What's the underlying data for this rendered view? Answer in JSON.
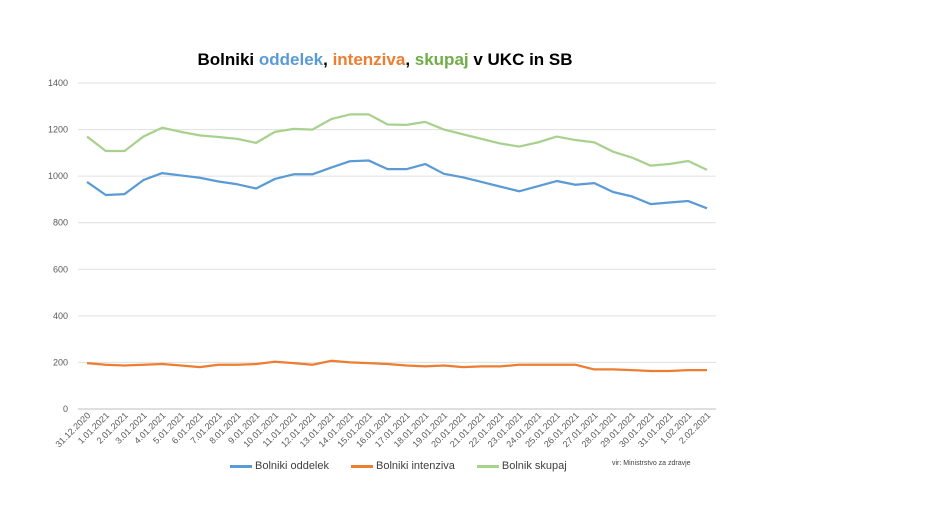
{
  "chart_data": {
    "type": "line",
    "title_parts": [
      {
        "text": "Bolniki ",
        "color": "#000000"
      },
      {
        "text": "oddelek",
        "color": "#5B9BD5"
      },
      {
        "text": ", ",
        "color": "#000000"
      },
      {
        "text": "intenziva",
        "color": "#ED7D31"
      },
      {
        "text": ", ",
        "color": "#000000"
      },
      {
        "text": "skupaj",
        "color": "#70AD47"
      },
      {
        "text": " v UKC in SB",
        "color": "#000000"
      }
    ],
    "categories": [
      "31.12.2020",
      "1.01.2021",
      "2.01.2021",
      "3.01.2021",
      "4.01.2021",
      "5.01.2021",
      "6.01.2021",
      "7.01.2021",
      "8.01.2021",
      "9.01.2021",
      "10.01.2021",
      "11.01.2021",
      "12.01.2021",
      "13.01.2021",
      "14.01.2021",
      "15.01.2021",
      "16.01.2021",
      "17.01.2021",
      "18.01.2021",
      "19.01.2021",
      "20.01.2021",
      "21.01.2021",
      "22.01.2021",
      "23.01.2021",
      "24.01.2021",
      "25.01.2021",
      "26.01.2021",
      "27.01.2021",
      "28.01.2021",
      "29.01.2021",
      "30.01.2021",
      "31.01.2021",
      "1.02.2021",
      "2.02.2021"
    ],
    "series": [
      {
        "name": "Bolniki oddelek",
        "color": "#5B9BD5",
        "values": [
          975,
          919,
          923,
          983,
          1013,
          1003,
          993,
          977,
          965,
          947,
          988,
          1008,
          1008,
          1037,
          1064,
          1067,
          1030,
          1030,
          1052,
          1010,
          995,
          975,
          955,
          935,
          957,
          979,
          963,
          970,
          932,
          913,
          880,
          887,
          893,
          862
        ]
      },
      {
        "name": "Bolniki intenziva",
        "color": "#ED7D31",
        "values": [
          197,
          190,
          187,
          190,
          193,
          187,
          180,
          190,
          190,
          193,
          203,
          197,
          190,
          207,
          200,
          197,
          193,
          187,
          183,
          187,
          180,
          183,
          183,
          190,
          190,
          190,
          190,
          170,
          170,
          167,
          163,
          163,
          167,
          167
        ]
      },
      {
        "name": "Bolnik skupaj",
        "color": "#A9D18E",
        "values": [
          1170,
          1108,
          1108,
          1170,
          1208,
          1190,
          1175,
          1168,
          1160,
          1143,
          1190,
          1203,
          1200,
          1245,
          1265,
          1265,
          1222,
          1220,
          1233,
          1200,
          1180,
          1160,
          1140,
          1127,
          1145,
          1170,
          1155,
          1145,
          1105,
          1080,
          1045,
          1052,
          1065,
          1027
        ]
      }
    ],
    "ylim": [
      0,
      1400
    ],
    "yticks": [
      0,
      200,
      400,
      600,
      800,
      1000,
      1200,
      1400
    ],
    "grid": true,
    "legend": "bottom",
    "source": "vir: Ministrstvo za zdravje"
  }
}
